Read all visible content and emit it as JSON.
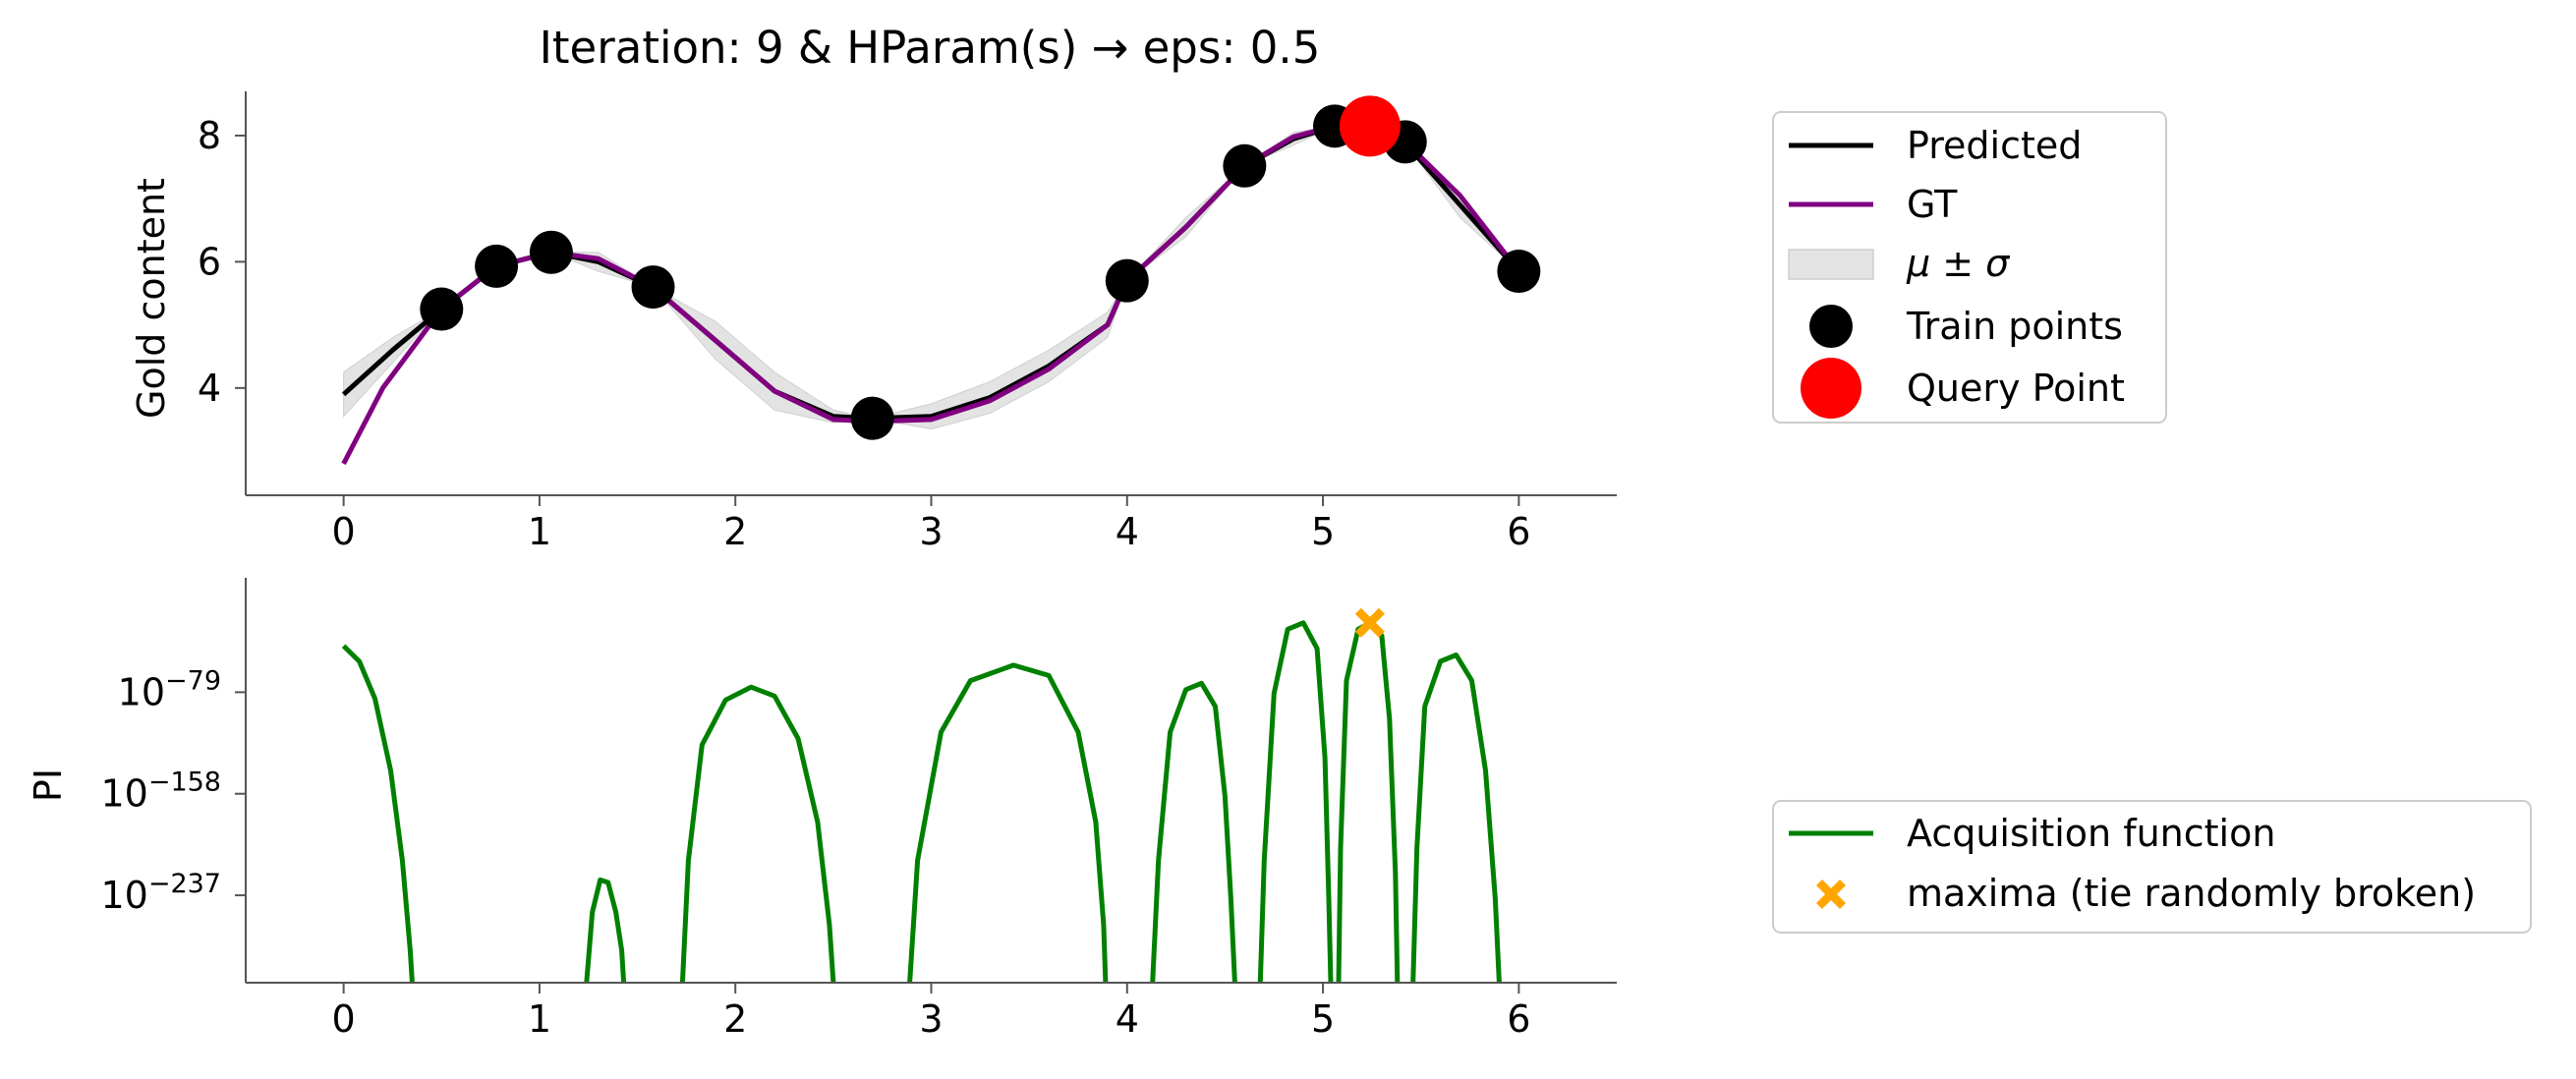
{
  "chart_data": [
    {
      "type": "line",
      "title": "Iteration: 9 & HParam(s) → eps: 0.5",
      "xlabel": "",
      "ylabel": "Gold content",
      "xlim": [
        -0.5,
        6.5
      ],
      "ylim": [
        2.3,
        8.7
      ],
      "xticks": [
        "0",
        "1",
        "2",
        "3",
        "4",
        "5",
        "6"
      ],
      "yticks": [
        "4",
        "6",
        "8"
      ],
      "grid": false,
      "legend_position": "outside-right-top",
      "legend": [
        "Predicted",
        "GT",
        "μ ± σ",
        "Train points",
        "Query Point"
      ],
      "series": [
        {
          "name": "Predicted",
          "color": "#000000",
          "x": [
            0,
            0.25,
            0.5,
            0.78,
            1.06,
            1.3,
            1.58,
            1.9,
            2.2,
            2.5,
            2.7,
            3.0,
            3.3,
            3.6,
            3.9,
            4.0,
            4.3,
            4.6,
            4.85,
            5.06,
            5.24,
            5.42,
            5.7,
            6.0
          ],
          "y": [
            3.9,
            4.6,
            5.25,
            5.93,
            6.15,
            6.0,
            5.6,
            4.75,
            3.95,
            3.55,
            3.52,
            3.55,
            3.85,
            4.35,
            5.0,
            5.7,
            6.55,
            7.52,
            7.95,
            8.15,
            8.12,
            7.88,
            6.9,
            5.85
          ]
        },
        {
          "name": "GT",
          "color": "#800080",
          "x": [
            0,
            0.2,
            0.5,
            0.78,
            1.06,
            1.3,
            1.58,
            1.9,
            2.2,
            2.5,
            2.7,
            3.0,
            3.3,
            3.6,
            3.9,
            4.0,
            4.3,
            4.6,
            4.85,
            5.06,
            5.24,
            5.42,
            5.7,
            6.0
          ],
          "y": [
            2.8,
            4.0,
            5.25,
            5.93,
            6.15,
            6.05,
            5.6,
            4.75,
            3.95,
            3.5,
            3.47,
            3.5,
            3.8,
            4.3,
            5.0,
            5.7,
            6.55,
            7.52,
            7.98,
            8.15,
            8.15,
            7.9,
            7.05,
            5.85
          ]
        },
        {
          "name": "Query Point",
          "color": "#ff0000",
          "x": [
            5.24
          ],
          "y": [
            8.15
          ]
        }
      ],
      "band": {
        "name": "μ ± σ",
        "color": "#e3e3e3",
        "x": [
          0,
          0.25,
          0.5,
          0.78,
          1.06,
          1.3,
          1.58,
          1.9,
          2.2,
          2.5,
          2.7,
          3.0,
          3.3,
          3.6,
          3.9,
          4.0,
          4.3,
          4.6,
          4.85,
          5.06,
          5.24,
          5.42,
          5.7,
          6.0
        ],
        "lower": [
          3.55,
          4.4,
          5.25,
          5.93,
          6.15,
          5.85,
          5.6,
          4.45,
          3.65,
          3.45,
          3.52,
          3.35,
          3.6,
          4.1,
          4.8,
          5.7,
          6.4,
          7.52,
          7.85,
          8.15,
          8.0,
          7.88,
          6.7,
          5.85
        ],
        "upper": [
          4.25,
          4.8,
          5.25,
          5.93,
          6.15,
          6.15,
          5.6,
          5.05,
          4.25,
          3.65,
          3.52,
          3.75,
          4.1,
          4.6,
          5.2,
          5.7,
          6.7,
          7.52,
          8.05,
          8.15,
          8.25,
          7.88,
          7.1,
          5.85
        ]
      },
      "train_points": {
        "name": "Train points",
        "color": "#000000",
        "x": [
          0.5,
          0.78,
          1.06,
          1.58,
          2.7,
          4.0,
          4.6,
          5.06,
          5.42,
          6.0
        ],
        "y": [
          5.25,
          5.93,
          6.15,
          5.6,
          3.52,
          5.7,
          7.52,
          8.15,
          7.9,
          5.85
        ]
      }
    },
    {
      "type": "line",
      "title": "",
      "xlabel": "",
      "ylabel": "PI",
      "yscale": "log",
      "xlim": [
        -0.5,
        6.5
      ],
      "ylim_exponent": [
        -305,
        10
      ],
      "xticks": [
        "0",
        "1",
        "2",
        "3",
        "4",
        "5",
        "6"
      ],
      "yticks": [
        {
          "base": "10",
          "exp": "−79",
          "value": -79
        },
        {
          "base": "10",
          "exp": "−158",
          "value": -158
        },
        {
          "base": "10",
          "exp": "−237",
          "value": -237
        }
      ],
      "grid": false,
      "legend_position": "outside-right-bottom",
      "legend": [
        "Acquisition function",
        "maxima (tie randomly broken)"
      ],
      "series": [
        {
          "name": "Acquisition function",
          "color": "#008000",
          "segments": [
            {
              "x": [
                0.0,
                0.08,
                0.16,
                0.24,
                0.3,
                0.34,
                0.35
              ],
              "log10y": [
                -43,
                -55,
                -84,
                -140,
                -210,
                -280,
                -305
              ]
            },
            {
              "x": [
                1.24,
                1.27,
                1.31,
                1.35,
                1.39,
                1.42,
                1.43
              ],
              "log10y": [
                -305,
                -250,
                -225,
                -227,
                -250,
                -280,
                -305
              ]
            },
            {
              "x": [
                1.73,
                1.76,
                1.83,
                1.95,
                2.08,
                2.2,
                2.32,
                2.42,
                2.48,
                2.5
              ],
              "log10y": [
                -305,
                -210,
                -120,
                -85,
                -75,
                -82,
                -115,
                -180,
                -260,
                -305
              ]
            },
            {
              "x": [
                2.89,
                2.93,
                3.05,
                3.2,
                3.42,
                3.6,
                3.75,
                3.84,
                3.88,
                3.89
              ],
              "log10y": [
                -305,
                -210,
                -110,
                -70,
                -58,
                -66,
                -110,
                -180,
                -260,
                -305
              ]
            },
            {
              "x": [
                4.13,
                4.16,
                4.22,
                4.3,
                4.38,
                4.45,
                4.5,
                4.53,
                4.55
              ],
              "log10y": [
                -305,
                -210,
                -110,
                -77,
                -72,
                -90,
                -160,
                -240,
                -305
              ]
            },
            {
              "x": [
                4.68,
                4.7,
                4.75,
                4.82,
                4.9,
                4.97,
                5.01,
                5.03,
                5.04
              ],
              "log10y": [
                -305,
                -210,
                -80,
                -30,
                -25,
                -45,
                -130,
                -240,
                -305
              ]
            },
            {
              "x": [
                5.08,
                5.09,
                5.12,
                5.18,
                5.24,
                5.3,
                5.34,
                5.37,
                5.38
              ],
              "log10y": [
                -305,
                -200,
                -70,
                -30,
                -25,
                -35,
                -100,
                -220,
                -305
              ]
            },
            {
              "x": [
                5.46,
                5.48,
                5.52,
                5.6,
                5.68,
                5.76,
                5.83,
                5.88,
                5.9
              ],
              "log10y": [
                -305,
                -200,
                -90,
                -55,
                -50,
                -70,
                -140,
                -240,
                -305
              ]
            }
          ]
        }
      ],
      "maxima": {
        "name": "maxima (tie randomly broken)",
        "color": "#ffa500",
        "x": 5.24,
        "log10y": -25
      }
    }
  ]
}
